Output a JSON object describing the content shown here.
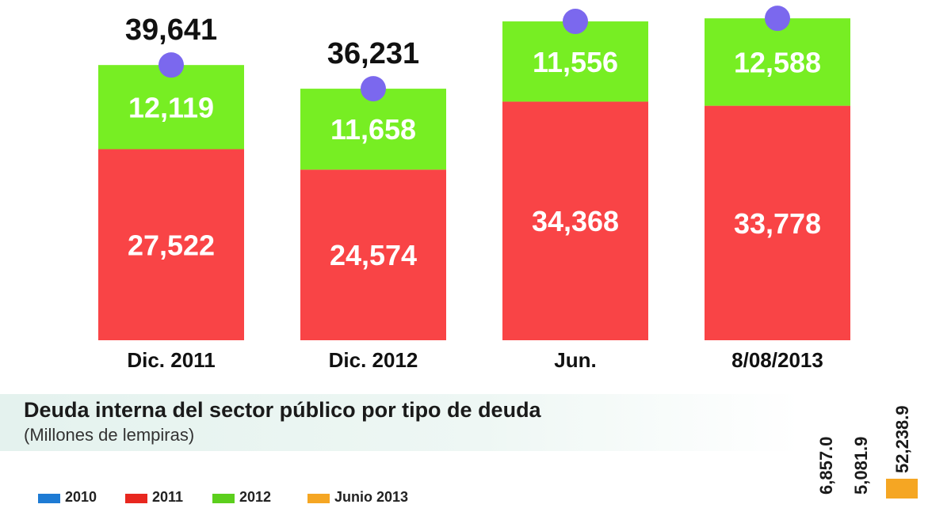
{
  "chart_data": [
    {
      "type": "bar",
      "stacked": true,
      "categories": [
        "Dic. 2011",
        "Dic. 2012",
        "Jun.",
        "8/08/2013"
      ],
      "series": [
        {
          "values": [
            27522,
            24574,
            34368,
            33778
          ],
          "labels": [
            "27,522",
            "24,574",
            "34,368",
            "33,778"
          ],
          "color": "#f94446"
        },
        {
          "values": [
            12119,
            11658,
            11556,
            12588
          ],
          "labels": [
            "12,119",
            "11,658",
            "11,556",
            "12,588"
          ],
          "color": "#77ee23"
        }
      ],
      "totals": [
        39641,
        36231,
        45924,
        46366
      ],
      "total_labels": [
        "39,641",
        "36,231",
        "",
        ""
      ],
      "marker_color": "#7b68ee",
      "ylim": [
        0,
        46500
      ],
      "grid": false
    },
    {
      "type": "bar",
      "title": "Deuda interna del sector público por tipo de deuda",
      "subtitle": "(Millones de lempiras)",
      "legend": [
        {
          "label": "2010",
          "color": "#1e7bd4"
        },
        {
          "label": "2011",
          "color": "#e8271f"
        },
        {
          "label": "2012",
          "color": "#5ccf1d"
        },
        {
          "label": "Junio 2013",
          "color": "#f5a623"
        }
      ],
      "visible_value_labels": [
        "6,857.0",
        "5,081.9",
        "52,238.9"
      ]
    }
  ]
}
